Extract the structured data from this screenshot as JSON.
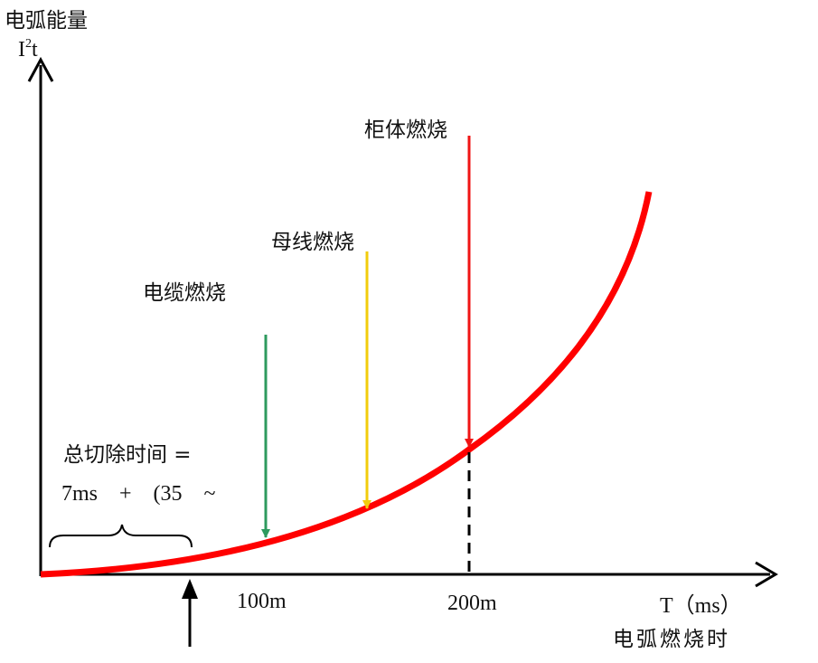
{
  "y_axis": {
    "label": "电弧能量",
    "unit": {
      "base": "I",
      "sup": "2",
      "rest": "t"
    }
  },
  "x_axis": {
    "unit": "T（ms）",
    "label": "电弧燃烧时",
    "tick_labels": [
      "100m",
      "200m"
    ]
  },
  "annotations": [
    {
      "label": "电缆燃烧",
      "color": "#2e9a5e"
    },
    {
      "label": "母线燃烧",
      "color": "#f2cc0c"
    },
    {
      "label": "柜体燃烧",
      "color": "#f01414"
    }
  ],
  "curve_color": "#ff0000",
  "clearing_time": {
    "line1": "总切除时间 =",
    "line2": "7ms    +    (35    ~"
  }
}
